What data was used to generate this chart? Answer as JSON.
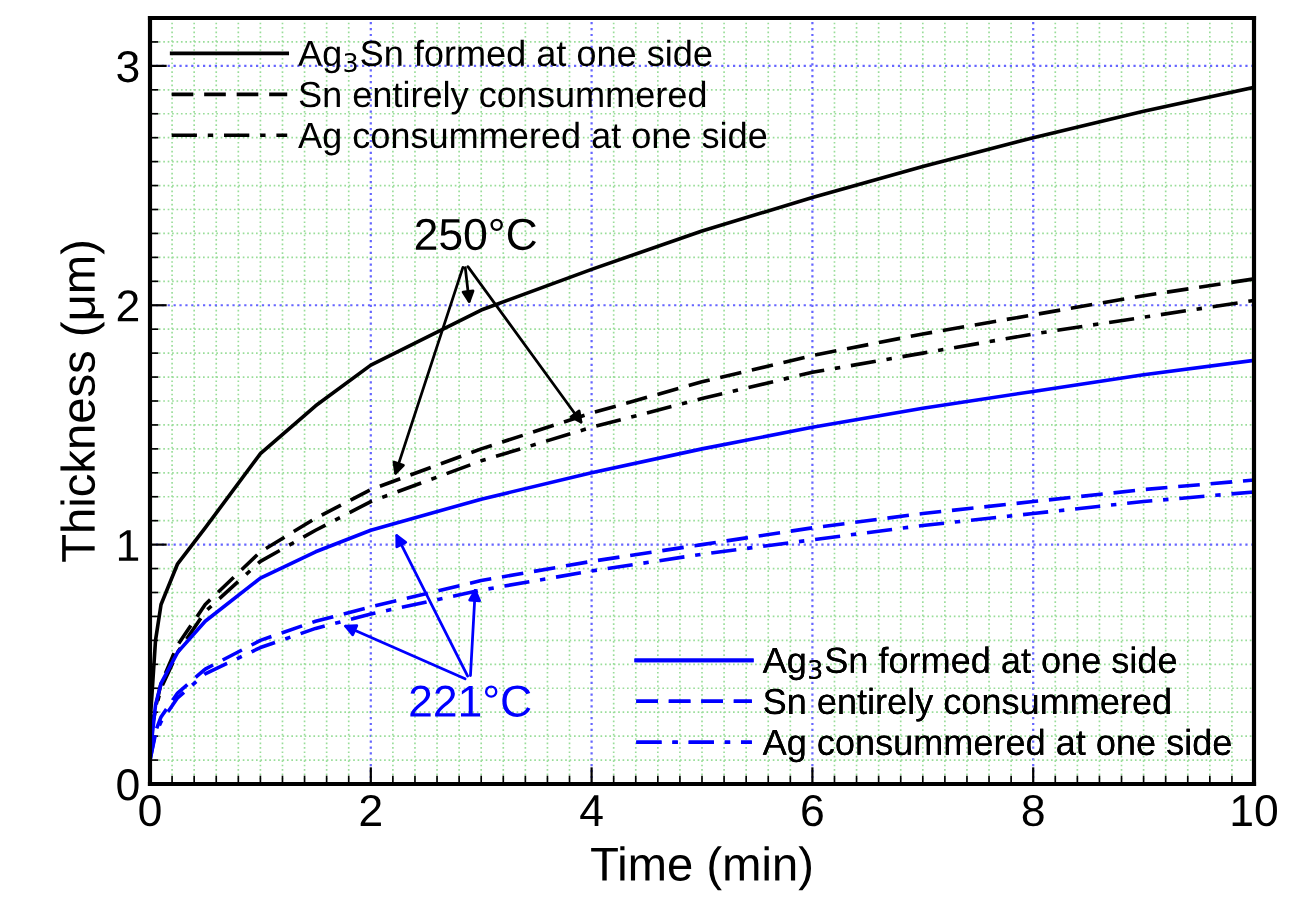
{
  "chart_data": {
    "type": "line",
    "xlabel": "Time (min)",
    "ylabel": "Thickness (μm)",
    "x": [
      0,
      0.05,
      0.1,
      0.25,
      0.5,
      1,
      1.5,
      2,
      3,
      4,
      5,
      6,
      7,
      8,
      9,
      10
    ],
    "series": [
      {
        "name": "Ag$_{3}$Sn formed at one side",
        "color": "#000000",
        "line_style": "solid",
        "values": [
          0.25,
          0.6,
          0.75,
          0.92,
          1.07,
          1.38,
          1.58,
          1.75,
          1.98,
          2.15,
          2.31,
          2.45,
          2.58,
          2.7,
          2.81,
          2.91
        ]
      },
      {
        "name": "Sn entirely consummered",
        "color": "#000000",
        "line_style": "dashed",
        "values": [
          0.2,
          0.32,
          0.42,
          0.58,
          0.75,
          0.97,
          1.11,
          1.23,
          1.4,
          1.55,
          1.68,
          1.79,
          1.88,
          1.96,
          2.04,
          2.11
        ]
      },
      {
        "name": "Ag consummered at one side",
        "color": "#000000",
        "line_style": "dashdot",
        "values": [
          0.2,
          0.31,
          0.4,
          0.55,
          0.72,
          0.93,
          1.06,
          1.18,
          1.35,
          1.49,
          1.61,
          1.72,
          1.8,
          1.88,
          1.95,
          2.02
        ]
      },
      {
        "name": "Ag$_{3}$Sn formed at one side",
        "color": "#0000ff",
        "line_style": "solid",
        "values": [
          0.12,
          0.33,
          0.42,
          0.55,
          0.68,
          0.86,
          0.97,
          1.06,
          1.19,
          1.3,
          1.4,
          1.49,
          1.57,
          1.64,
          1.71,
          1.77
        ]
      },
      {
        "name": "Sn entirely consummered",
        "color": "#0000ff",
        "line_style": "dashed",
        "values": [
          0.1,
          0.22,
          0.28,
          0.38,
          0.48,
          0.6,
          0.68,
          0.74,
          0.85,
          0.93,
          1.0,
          1.07,
          1.13,
          1.18,
          1.23,
          1.27
        ]
      },
      {
        "name": "Ag consummered at one side",
        "color": "#0000ff",
        "line_style": "dashdot",
        "values": [
          0.1,
          0.21,
          0.26,
          0.36,
          0.46,
          0.57,
          0.65,
          0.71,
          0.81,
          0.89,
          0.96,
          1.02,
          1.08,
          1.13,
          1.18,
          1.22
        ]
      }
    ],
    "annotations": [
      {
        "text": "250°C",
        "x": 2.9,
        "y": 1.98
      },
      {
        "text": "221°C",
        "x": 2.2,
        "y": 1.07
      }
    ],
    "xlim": [
      0,
      10
    ],
    "xticks": [
      0,
      {
        "value": 0.2,
        "label": null
      },
      {
        "value": 0.4,
        "label": null
      },
      {
        "value": 0.6,
        "label": null
      },
      {
        "value": 0.8,
        "label": null
      },
      {
        "value": 1,
        "label": null
      },
      {
        "value": 1.2,
        "label": null
      },
      {
        "value": 1.4,
        "label": null
      },
      {
        "value": 1.6,
        "label": null
      },
      {
        "value": 1.8,
        "label": null
      },
      2,
      {
        "value": 2.2,
        "label": null
      },
      {
        "value": 2.4,
        "label": null
      },
      {
        "value": 2.6,
        "label": null
      },
      {
        "value": 2.8,
        "label": null
      },
      {
        "value": 3,
        "label": null
      },
      {
        "value": 3.2,
        "label": null
      },
      {
        "value": 3.4,
        "label": null
      },
      {
        "value": 3.6,
        "label": null
      },
      {
        "value": 3.8,
        "label": null
      },
      4,
      {
        "value": 4.2,
        "label": null
      },
      {
        "value": 4.4,
        "label": null
      },
      {
        "value": 4.6,
        "label": null
      },
      {
        "value": 4.8,
        "label": null
      },
      {
        "value": 5,
        "label": null
      },
      {
        "value": 5.2,
        "label": null
      },
      {
        "value": 5.4,
        "label": null
      },
      {
        "value": 5.6,
        "label": null
      },
      {
        "value": 5.8,
        "label": null
      },
      6,
      {
        "value": 6.2,
        "label": null
      },
      {
        "value": 6.4,
        "label": null
      },
      {
        "value": 6.6,
        "label": null
      },
      {
        "value": 6.8,
        "label": null
      },
      {
        "value": 7,
        "label": null
      },
      {
        "value": 7.2,
        "label": null
      },
      {
        "value": 7.4,
        "label": null
      },
      {
        "value": 7.6,
        "label": null
      },
      {
        "value": 7.8,
        "label": null
      },
      8,
      {
        "value": 8.2,
        "label": null
      },
      {
        "value": 8.4,
        "label": null
      },
      {
        "value": 8.6,
        "label": null
      },
      {
        "value": 8.8,
        "label": null
      },
      {
        "value": 9,
        "label": null
      },
      {
        "value": 9.2,
        "label": null
      },
      {
        "value": 9.4,
        "label": null
      },
      {
        "value": 9.6,
        "label": null
      },
      {
        "value": 9.8,
        "label": null
      },
      10
    ],
    "ylim": [
      0,
      3.2
    ],
    "yticks": [
      0,
      {
        "value": 0.1,
        "label": null
      },
      {
        "value": 0.2,
        "label": null
      },
      {
        "value": 0.3,
        "label": null
      },
      {
        "value": 0.4,
        "label": null
      },
      {
        "value": 0.5,
        "label": null
      },
      {
        "value": 0.6,
        "label": null
      },
      {
        "value": 0.7,
        "label": null
      },
      {
        "value": 0.8,
        "label": null
      },
      {
        "value": 0.9,
        "label": null
      },
      1,
      {
        "value": 1.1,
        "label": null
      },
      {
        "value": 1.2,
        "label": null
      },
      {
        "value": 1.3,
        "label": null
      },
      {
        "value": 1.4,
        "label": null
      },
      {
        "value": 1.5,
        "label": null
      },
      {
        "value": 1.6,
        "label": null
      },
      {
        "value": 1.7,
        "label": null
      },
      {
        "value": 1.8,
        "label": null
      },
      {
        "value": 1.9,
        "label": null
      },
      2,
      {
        "value": 2.1,
        "label": null
      },
      {
        "value": 2.2,
        "label": null
      },
      {
        "value": 2.3,
        "label": null
      },
      {
        "value": 2.4,
        "label": null
      },
      {
        "value": 2.5,
        "label": null
      },
      {
        "value": 2.6,
        "label": null
      },
      {
        "value": 2.7,
        "label": null
      },
      {
        "value": 2.8,
        "label": null
      },
      {
        "value": 2.9,
        "label": null
      },
      3,
      {
        "value": 3.1,
        "label": null
      },
      {
        "value": 3.2,
        "label": null
      }
    ],
    "grid": true,
    "marker": "none",
    "legend": [
      "top left",
      "bottom right"
    ]
  }
}
